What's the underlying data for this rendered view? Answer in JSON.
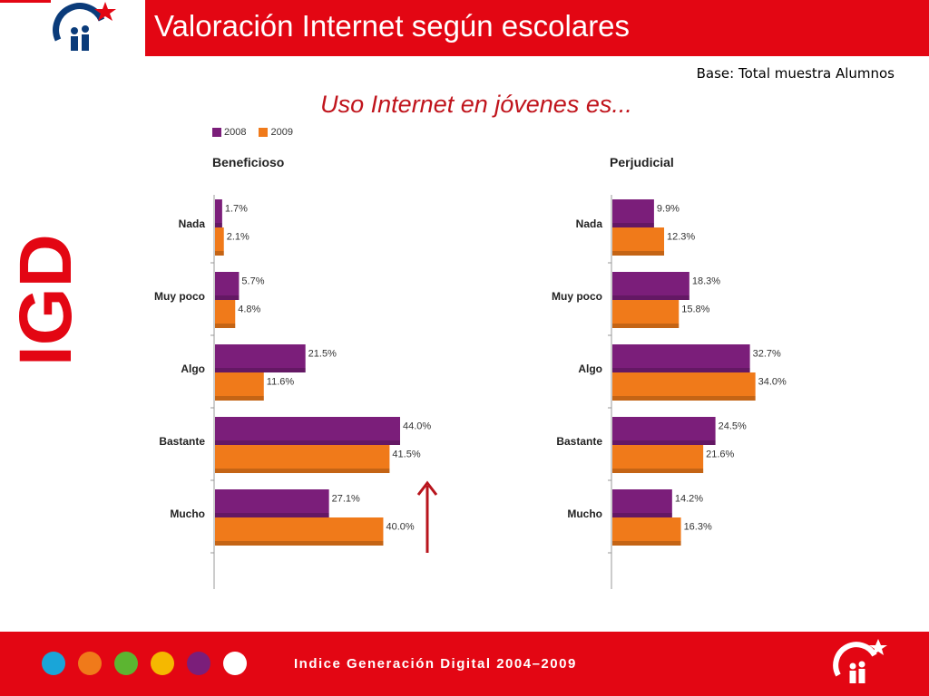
{
  "header": {
    "title": "Valoración Internet según escolares",
    "base_note": "Base: Total muestra Alumnos",
    "subtitle": "Uso Internet en jóvenes es..."
  },
  "icons": {
    "header_logo": "igd-people-star-logo-icon",
    "side_logo": "igd-vertical-logo-icon",
    "arrow": "up-arrow-icon",
    "footer_logo": "igd-people-star-logo-icon"
  },
  "side_logo_text": "IGD",
  "colors": {
    "brand_red": "#e30613",
    "series_2008": "#7b1e7a",
    "series_2009": "#f07a1a",
    "arrow": "#b8141c"
  },
  "legend": [
    {
      "name": "2008",
      "color": "#7b1e7a"
    },
    {
      "name": "2009",
      "color": "#f07a1a"
    }
  ],
  "chart_data": [
    {
      "type": "bar",
      "orientation": "horizontal",
      "title": "Beneficioso",
      "categories": [
        "Nada",
        "Muy poco",
        "Algo",
        "Bastante",
        "Mucho"
      ],
      "series": [
        {
          "name": "2008",
          "values": [
            1.7,
            5.7,
            21.5,
            44.0,
            27.1
          ],
          "labels": [
            "1.7%",
            "5.7%",
            "21.5%",
            "44.0%",
            "27.1%"
          ]
        },
        {
          "name": "2009",
          "values": [
            2.1,
            4.8,
            11.6,
            41.5,
            40.0
          ],
          "labels": [
            "2.1%",
            "4.8%",
            "11.6%",
            "41.5%",
            "40.0%"
          ]
        }
      ],
      "xlim": [
        0,
        50
      ]
    },
    {
      "type": "bar",
      "orientation": "horizontal",
      "title": "Perjudicial",
      "categories": [
        "Nada",
        "Muy poco",
        "Algo",
        "Bastante",
        "Mucho"
      ],
      "series": [
        {
          "name": "2008",
          "values": [
            9.9,
            18.3,
            32.7,
            24.5,
            14.2
          ],
          "labels": [
            "9.9%",
            "18.3%",
            "32.7%",
            "24.5%",
            "14.2%"
          ]
        },
        {
          "name": "2009",
          "values": [
            12.3,
            15.8,
            34.0,
            21.6,
            16.3
          ],
          "labels": [
            "12.3%",
            "15.8%",
            "34.0%",
            "21.6%",
            "16.3%"
          ]
        }
      ],
      "xlim": [
        0,
        50
      ]
    }
  ],
  "footer": {
    "text": "Indice Generación Digital 2004–2009",
    "dot_colors": [
      "#1aa5d8",
      "#f07a1a",
      "#5cb531",
      "#f5b800",
      "#7b1e7a",
      "#ffffff"
    ]
  }
}
